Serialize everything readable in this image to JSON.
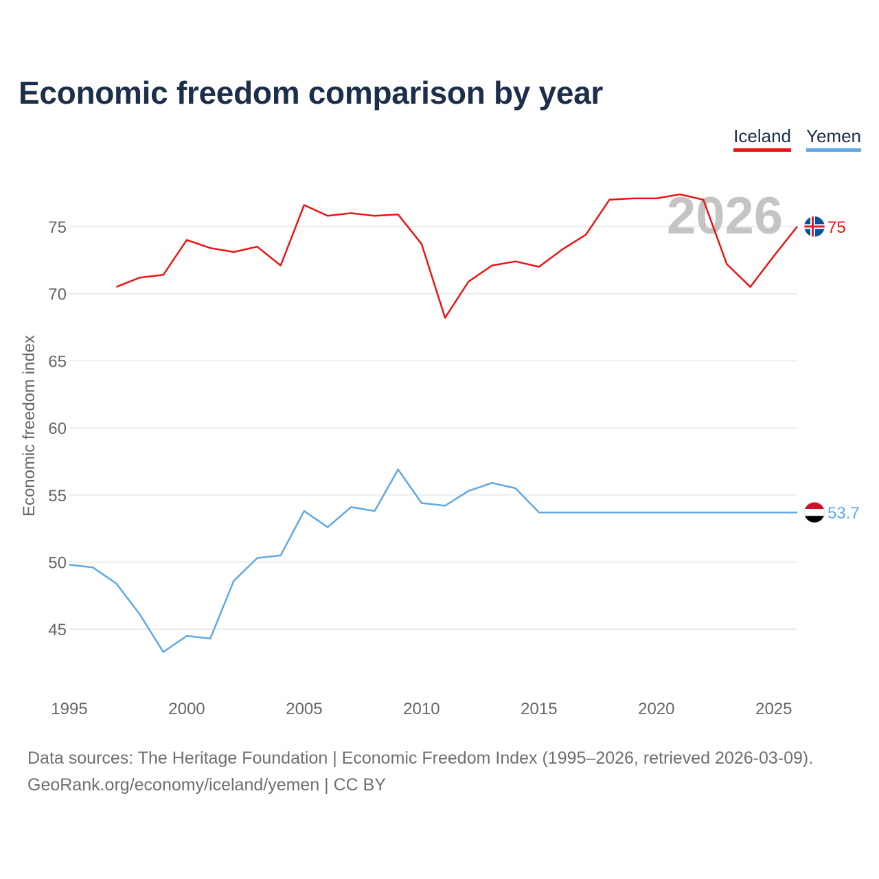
{
  "title": "Economic freedom comparison by year",
  "watermark_year": "2026",
  "colors": {
    "iceland": "#ee1111",
    "yemen": "#5ea8e6",
    "title": "#1c2e4a"
  },
  "legend": [
    {
      "label": "Iceland",
      "color": "#ee1111"
    },
    {
      "label": "Yemen",
      "color": "#5ea8e6"
    }
  ],
  "source": {
    "line1": "Data sources: The Heritage Foundation | Economic Freedom Index (1995–2026, retrieved 2026-03-09).",
    "line2": "GeoRank.org/economy/iceland/yemen | CC BY"
  },
  "chart_data": {
    "type": "line",
    "title": "Economic freedom comparison by year",
    "xlabel": "",
    "ylabel": "Economic freedom index",
    "xlim": [
      1995,
      2026
    ],
    "ylim": [
      40.2,
      79.6
    ],
    "x_ticks": [
      1995,
      2000,
      2005,
      2010,
      2015,
      2020,
      2025
    ],
    "y_ticks": [
      45,
      50,
      55,
      60,
      65,
      70,
      75
    ],
    "grid": true,
    "legend_position": "top-right",
    "series": [
      {
        "name": "Iceland",
        "color": "#ee1111",
        "end_label": "75",
        "flag": "iceland-flag-icon",
        "points": [
          [
            1997,
            70.5
          ],
          [
            1998,
            71.2
          ],
          [
            1999,
            71.4
          ],
          [
            2000,
            74.0
          ],
          [
            2001,
            73.4
          ],
          [
            2002,
            73.1
          ],
          [
            2003,
            73.5
          ],
          [
            2004,
            72.1
          ],
          [
            2005,
            76.6
          ],
          [
            2006,
            75.8
          ],
          [
            2007,
            76.0
          ],
          [
            2008,
            75.8
          ],
          [
            2009,
            75.9
          ],
          [
            2010,
            73.7
          ],
          [
            2011,
            68.2
          ],
          [
            2012,
            70.9
          ],
          [
            2013,
            72.1
          ],
          [
            2014,
            72.4
          ],
          [
            2015,
            72.0
          ],
          [
            2016,
            73.3
          ],
          [
            2017,
            74.4
          ],
          [
            2018,
            77.0
          ],
          [
            2019,
            77.1
          ],
          [
            2020,
            77.1
          ],
          [
            2021,
            77.4
          ],
          [
            2022,
            77.0
          ],
          [
            2023,
            72.2
          ],
          [
            2024,
            70.5
          ],
          [
            2025,
            72.8
          ],
          [
            2026,
            75.0
          ]
        ]
      },
      {
        "name": "Yemen",
        "color": "#5ea8e6",
        "end_label": "53.7",
        "flag": "yemen-flag-icon",
        "points": [
          [
            1995,
            49.8
          ],
          [
            1996,
            49.6
          ],
          [
            1997,
            48.4
          ],
          [
            1998,
            46.1
          ],
          [
            1999,
            43.3
          ],
          [
            2000,
            44.5
          ],
          [
            2001,
            44.3
          ],
          [
            2002,
            48.6
          ],
          [
            2003,
            50.3
          ],
          [
            2004,
            50.5
          ],
          [
            2005,
            53.8
          ],
          [
            2006,
            52.6
          ],
          [
            2007,
            54.1
          ],
          [
            2008,
            53.8
          ],
          [
            2009,
            56.9
          ],
          [
            2010,
            54.4
          ],
          [
            2011,
            54.2
          ],
          [
            2012,
            55.3
          ],
          [
            2013,
            55.9
          ],
          [
            2014,
            55.5
          ],
          [
            2015,
            53.7
          ],
          [
            2016,
            53.7
          ],
          [
            2017,
            53.7
          ],
          [
            2018,
            53.7
          ],
          [
            2019,
            53.7
          ],
          [
            2020,
            53.7
          ],
          [
            2021,
            53.7
          ],
          [
            2022,
            53.7
          ],
          [
            2023,
            53.7
          ],
          [
            2024,
            53.7
          ],
          [
            2025,
            53.7
          ],
          [
            2026,
            53.7
          ]
        ]
      }
    ]
  }
}
